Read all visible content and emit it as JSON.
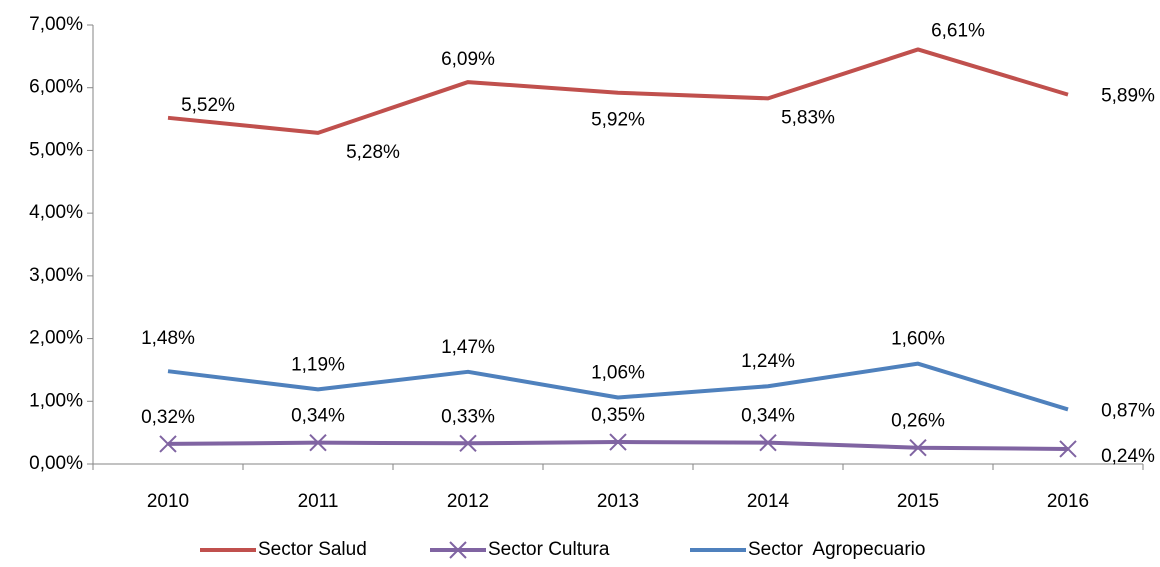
{
  "chart_data": {
    "type": "line",
    "categories": [
      "2010",
      "2011",
      "2012",
      "2013",
      "2014",
      "2015",
      "2016"
    ],
    "series": [
      {
        "name": "Sector Salud",
        "color": "#c0504d",
        "values": [
          5.52,
          5.28,
          6.09,
          5.92,
          5.83,
          6.61,
          5.89
        ],
        "value_labels": [
          "5,52%",
          "5,28%",
          "6,09%",
          "5,92%",
          "5,83%",
          "6,61%",
          "5,89%"
        ]
      },
      {
        "name": "Sector Cultura",
        "color": "#8064a2",
        "marker": "x",
        "values": [
          0.32,
          0.34,
          0.33,
          0.35,
          0.34,
          0.26,
          0.24
        ],
        "value_labels": [
          "0,32%",
          "0,34%",
          "0,33%",
          "0,35%",
          "0,34%",
          "0,26%",
          "0,24%"
        ]
      },
      {
        "name": "Sector  Agropecuario",
        "color": "#4f81bd",
        "values": [
          1.48,
          1.19,
          1.47,
          1.06,
          1.24,
          1.6,
          0.87
        ],
        "value_labels": [
          "1,48%",
          "1,19%",
          "1,47%",
          "1,06%",
          "1,24%",
          "1,60%",
          "0,87%"
        ]
      }
    ],
    "ylim": [
      0,
      7
    ],
    "yticks": [
      {
        "value": 0,
        "label": "0,00%"
      },
      {
        "value": 1,
        "label": "1,00%"
      },
      {
        "value": 2,
        "label": "2,00%"
      },
      {
        "value": 3,
        "label": "3,00%"
      },
      {
        "value": 4,
        "label": "4,00%"
      },
      {
        "value": 5,
        "label": "5,00%"
      },
      {
        "value": 6,
        "label": "6,00%"
      },
      {
        "value": 7,
        "label": "7,00%"
      }
    ],
    "legend": "bottom"
  }
}
